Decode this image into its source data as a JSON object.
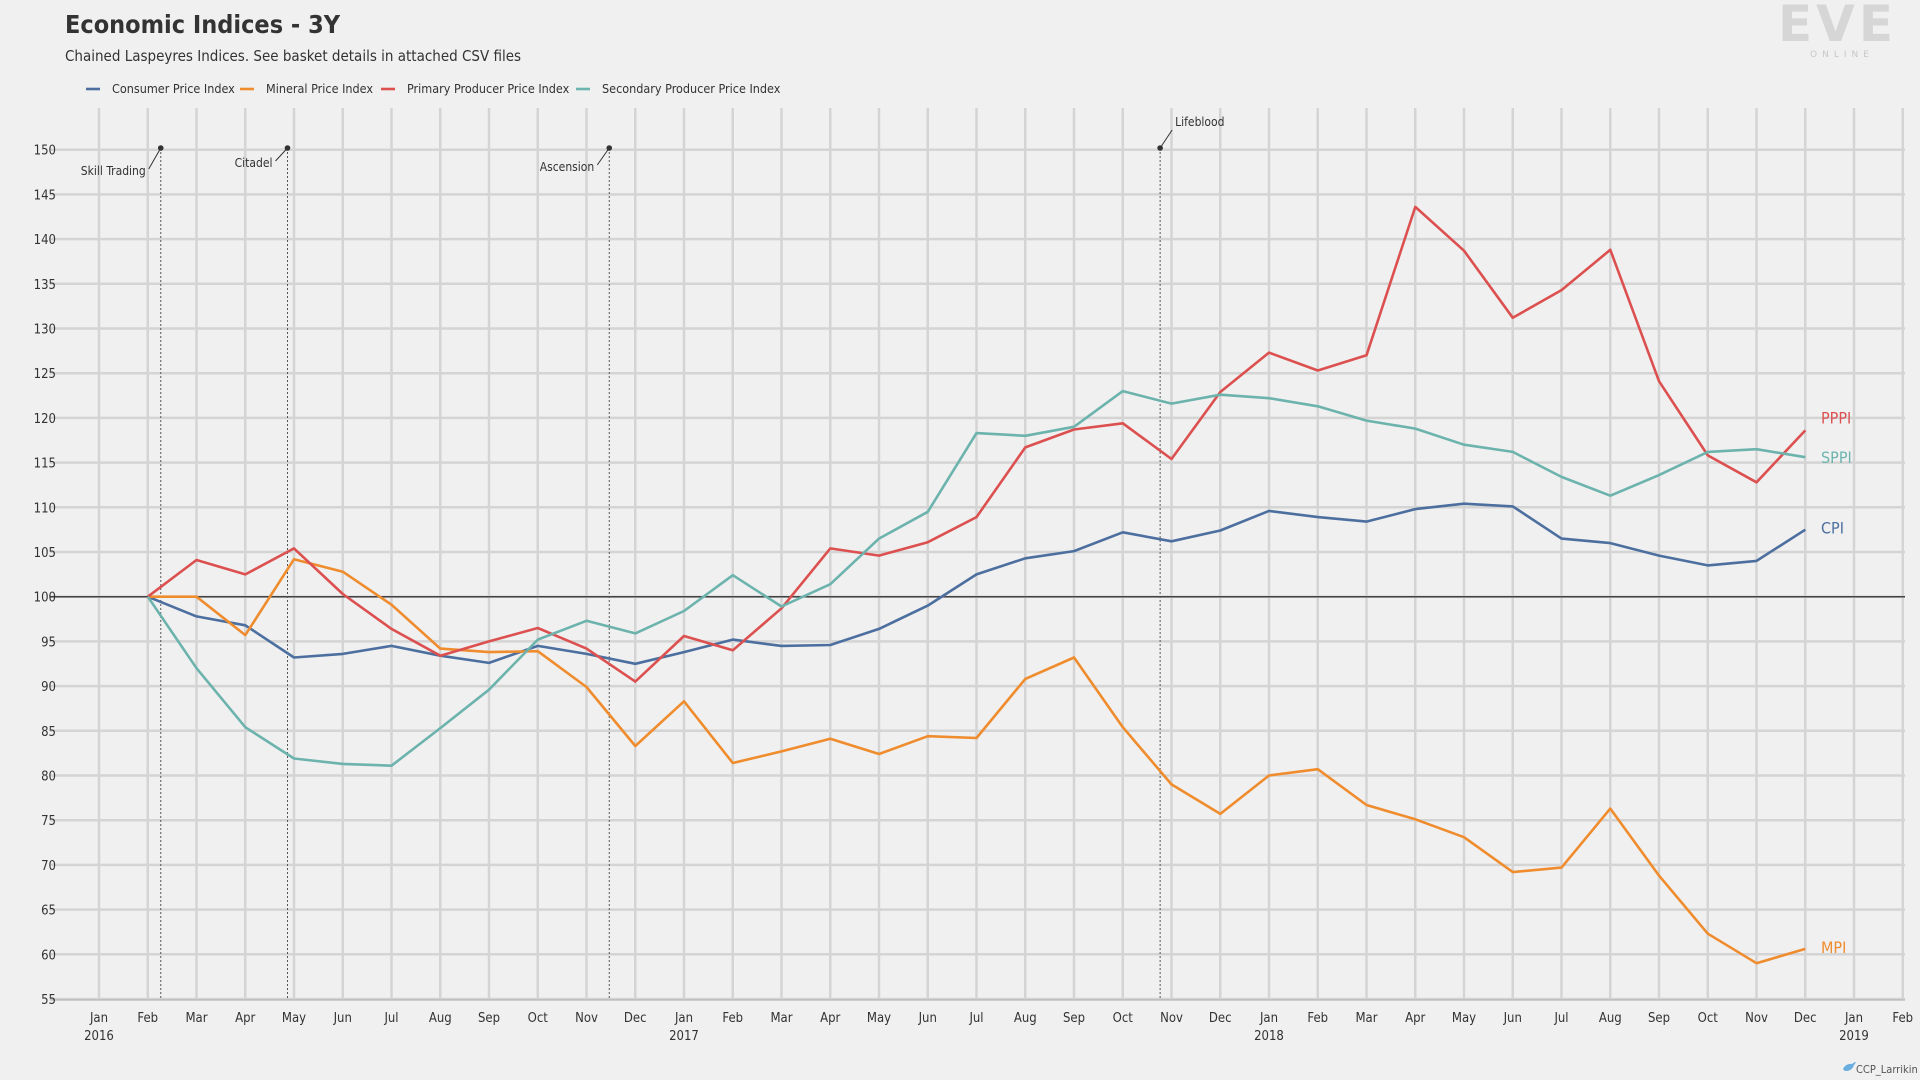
{
  "header": {
    "title": "Economic Indices - 3Y",
    "subtitle": "Chained Laspeyres Indices. See basket details in attached CSV files"
  },
  "logo": {
    "text": "EVE",
    "sub": "ONLINE"
  },
  "credit": "CCP_Larrikin",
  "chart_data": {
    "type": "line",
    "title": "Economic Indices - 3Y",
    "subtitle": "Chained Laspeyres Indices. See basket details in attached CSV files",
    "legend_position": "top-left",
    "grid": true,
    "baseline": 100,
    "ylim": [
      55,
      150
    ],
    "y_ticks": [
      55,
      60,
      65,
      70,
      75,
      80,
      85,
      90,
      95,
      100,
      105,
      110,
      115,
      120,
      125,
      130,
      135,
      140,
      145,
      150
    ],
    "x_ticks": [
      {
        "month": "Jan",
        "year": "2016"
      },
      {
        "month": "Feb",
        "year": ""
      },
      {
        "month": "Mar",
        "year": ""
      },
      {
        "month": "Apr",
        "year": ""
      },
      {
        "month": "May",
        "year": ""
      },
      {
        "month": "Jun",
        "year": ""
      },
      {
        "month": "Jul",
        "year": ""
      },
      {
        "month": "Aug",
        "year": ""
      },
      {
        "month": "Sep",
        "year": ""
      },
      {
        "month": "Oct",
        "year": ""
      },
      {
        "month": "Nov",
        "year": ""
      },
      {
        "month": "Dec",
        "year": ""
      },
      {
        "month": "Jan",
        "year": "2017"
      },
      {
        "month": "Feb",
        "year": ""
      },
      {
        "month": "Mar",
        "year": ""
      },
      {
        "month": "Apr",
        "year": ""
      },
      {
        "month": "May",
        "year": ""
      },
      {
        "month": "Jun",
        "year": ""
      },
      {
        "month": "Jul",
        "year": ""
      },
      {
        "month": "Aug",
        "year": ""
      },
      {
        "month": "Sep",
        "year": ""
      },
      {
        "month": "Oct",
        "year": ""
      },
      {
        "month": "Nov",
        "year": ""
      },
      {
        "month": "Dec",
        "year": ""
      },
      {
        "month": "Jan",
        "year": "2018"
      },
      {
        "month": "Feb",
        "year": ""
      },
      {
        "month": "Mar",
        "year": ""
      },
      {
        "month": "Apr",
        "year": ""
      },
      {
        "month": "May",
        "year": ""
      },
      {
        "month": "Jun",
        "year": ""
      },
      {
        "month": "Jul",
        "year": ""
      },
      {
        "month": "Aug",
        "year": ""
      },
      {
        "month": "Sep",
        "year": ""
      },
      {
        "month": "Oct",
        "year": ""
      },
      {
        "month": "Nov",
        "year": ""
      },
      {
        "month": "Dec",
        "year": ""
      },
      {
        "month": "Jan",
        "year": "2019"
      },
      {
        "month": "Feb",
        "year": ""
      }
    ],
    "x_dates": [
      "2016-02",
      "2016-03",
      "2016-04",
      "2016-05",
      "2016-06",
      "2016-07",
      "2016-08",
      "2016-09",
      "2016-10",
      "2016-11",
      "2016-12",
      "2017-01",
      "2017-02",
      "2017-03",
      "2017-04",
      "2017-05",
      "2017-06",
      "2017-07",
      "2017-08",
      "2017-09",
      "2017-10",
      "2017-11",
      "2017-12",
      "2018-01",
      "2018-02",
      "2018-03",
      "2018-04",
      "2018-05",
      "2018-06",
      "2018-07",
      "2018-08",
      "2018-09",
      "2018-10",
      "2018-11",
      "2018-12"
    ],
    "series": [
      {
        "name": "Consumer Price Index",
        "end_label": "CPI",
        "color": "#4c6f9f",
        "values": [
          100,
          97.8,
          96.8,
          93.2,
          93.6,
          94.5,
          93.4,
          92.6,
          94.5,
          93.6,
          92.5,
          93.8,
          95.2,
          94.5,
          94.6,
          96.4,
          99.0,
          102.5,
          104.3,
          105.1,
          107.2,
          106.2,
          107.4,
          109.6,
          108.9,
          108.4,
          109.8,
          110.4,
          110.1,
          106.5,
          106.0,
          104.6,
          103.5,
          104.0,
          107.5
        ]
      },
      {
        "name": "Mineral Price Index",
        "end_label": "MPI",
        "color": "#ef8c2e",
        "values": [
          100,
          100,
          95.7,
          104.2,
          102.8,
          99.1,
          94.2,
          93.8,
          93.9,
          89.9,
          83.3,
          88.3,
          81.4,
          82.7,
          84.1,
          82.4,
          84.4,
          84.2,
          90.8,
          93.2,
          85.4,
          79.0,
          75.7,
          80.0,
          80.7,
          76.7,
          75.1,
          73.1,
          69.2,
          69.7,
          76.3,
          68.8,
          62.3,
          59.0,
          60.6
        ]
      },
      {
        "name": "Primary Producer Price Index",
        "end_label": "PPPI",
        "color": "#dc5050",
        "values": [
          100,
          104.1,
          102.5,
          105.4,
          100.3,
          96.4,
          93.4,
          95.0,
          96.5,
          94.2,
          90.5,
          95.6,
          94.0,
          98.7,
          105.4,
          104.6,
          106.1,
          108.9,
          116.7,
          118.7,
          119.4,
          115.4,
          122.9,
          127.3,
          125.3,
          127.0,
          143.6,
          138.7,
          131.2,
          134.3,
          138.8,
          124.1,
          115.8,
          112.8,
          118.6
        ]
      },
      {
        "name": "Secondary Producer Price Index",
        "end_label": "SPPI",
        "color": "#6db3ad",
        "values": [
          100,
          92.0,
          85.4,
          81.9,
          81.3,
          81.1,
          85.3,
          89.6,
          95.2,
          97.3,
          95.9,
          98.4,
          102.4,
          98.9,
          101.4,
          106.5,
          109.5,
          118.3,
          118.0,
          119.0,
          123.0,
          121.6,
          122.6,
          122.2,
          121.3,
          119.7,
          118.8,
          117.0,
          116.2,
          113.4,
          111.3,
          113.6,
          116.2,
          116.5,
          115.6
        ]
      }
    ],
    "events": [
      {
        "label": "Skill Trading",
        "date": "2016-02-09"
      },
      {
        "label": "Citadel",
        "date": "2016-04-27"
      },
      {
        "label": "Ascension",
        "date": "2016-11-15"
      },
      {
        "label": "Lifeblood",
        "date": "2017-10-24"
      }
    ]
  }
}
